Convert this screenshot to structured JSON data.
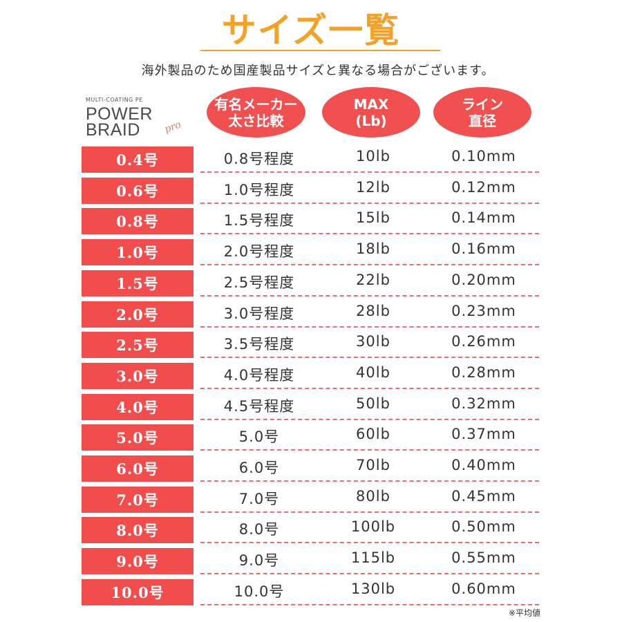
{
  "title": "サイズ一覧",
  "note": "海外製品のため国産製品サイズと異なる場合がございます。",
  "logo": {
    "tagline": "MULTI-COATING PE",
    "line1": "POWER",
    "line2": "BRAID",
    "suffix": "pro"
  },
  "headers": {
    "compare_l1": "有名メーカー",
    "compare_l2": "太さ比較",
    "max_l1": "MAX",
    "max_l2": "(Lb)",
    "diameter_l1": "ライン",
    "diameter_l2": "直径"
  },
  "rows": [
    {
      "size": "0.4号",
      "compare": "0.8号程度",
      "max": "10lb",
      "diameter": "0.10mm"
    },
    {
      "size": "0.6号",
      "compare": "1.0号程度",
      "max": "12lb",
      "diameter": "0.12mm"
    },
    {
      "size": "0.8号",
      "compare": "1.5号程度",
      "max": "15lb",
      "diameter": "0.14mm"
    },
    {
      "size": "1.0号",
      "compare": "2.0号程度",
      "max": "18lb",
      "diameter": "0.16mm"
    },
    {
      "size": "1.5号",
      "compare": "2.5号程度",
      "max": "22lb",
      "diameter": "0.20mm"
    },
    {
      "size": "2.0号",
      "compare": "3.0号程度",
      "max": "28lb",
      "diameter": "0.23mm"
    },
    {
      "size": "2.5号",
      "compare": "3.5号程度",
      "max": "30lb",
      "diameter": "0.26mm"
    },
    {
      "size": "3.0号",
      "compare": "4.0号程度",
      "max": "40lb",
      "diameter": "0.28mm"
    },
    {
      "size": "4.0号",
      "compare": "4.5号程度",
      "max": "50lb",
      "diameter": "0.32mm"
    },
    {
      "size": "5.0号",
      "compare": "5.0号",
      "max": "60lb",
      "diameter": "0.37mm"
    },
    {
      "size": "6.0号",
      "compare": "6.0号",
      "max": "70lb",
      "diameter": "0.40mm"
    },
    {
      "size": "7.0号",
      "compare": "7.0号",
      "max": "80lb",
      "diameter": "0.45mm"
    },
    {
      "size": "8.0号",
      "compare": "8.0号",
      "max": "100lb",
      "diameter": "0.50mm"
    },
    {
      "size": "9.0号",
      "compare": "9.0号",
      "max": "115lb",
      "diameter": "0.55mm"
    },
    {
      "size": "10.0号",
      "compare": "10.0号",
      "max": "130lb",
      "diameter": "0.60mm"
    }
  ],
  "footnote": "※平均値",
  "colors": {
    "title": "#f4a227",
    "accent_red": "#f24d4d",
    "dash": "#f06a6a"
  }
}
